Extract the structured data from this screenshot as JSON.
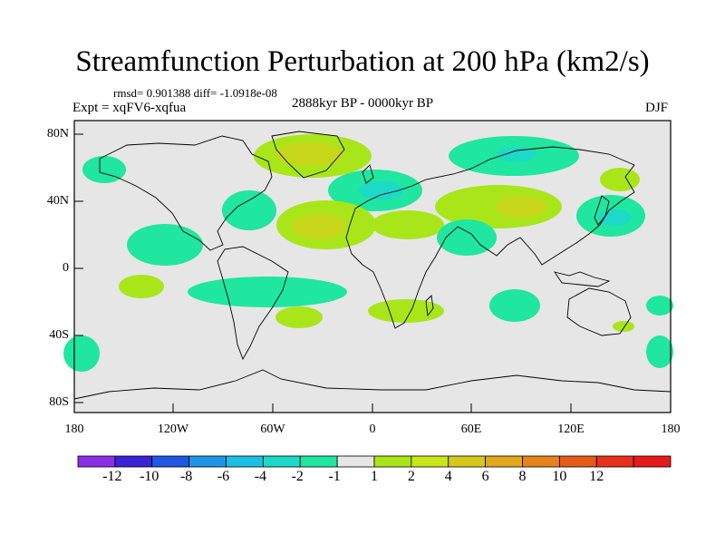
{
  "title": "Streamfunction Perturbation at 200 hPa (km2/s)",
  "stats": "rmsd= 0.901388 diff= -1.0918e-08",
  "experiment": "Expt = xqFV6-xqfua",
  "period": "2888kyr BP - 0000kyr BP",
  "season": "DJF",
  "lat_labels": [
    "80N",
    "40N",
    "0",
    "40S",
    "80S"
  ],
  "lon_labels": [
    "180",
    "120W",
    "60W",
    "0",
    "60E",
    "120E",
    "180"
  ],
  "colorbar": {
    "colors": [
      "#8b2fe6",
      "#3b22d6",
      "#1e58e3",
      "#1e95e8",
      "#1bbfe6",
      "#1dd9c8",
      "#1fe6a0",
      "#e6e6e6",
      "#a8e61a",
      "#c8e61a",
      "#d6c81a",
      "#e0a81a",
      "#e6821a",
      "#e65a1a",
      "#e6321a",
      "#e61a1a"
    ],
    "labels": [
      "-12",
      "-10",
      "-8",
      "-6",
      "-4",
      "-2",
      "-1",
      "1",
      "2",
      "4",
      "6",
      "8",
      "10",
      "12"
    ]
  },
  "colors": {
    "background_field": "#e6e6e6",
    "positive_light": "#a8e61a",
    "positive_mid": "#c8d61a",
    "negative_light": "#1fe6a0",
    "negative_mid": "#1dd9c8"
  }
}
